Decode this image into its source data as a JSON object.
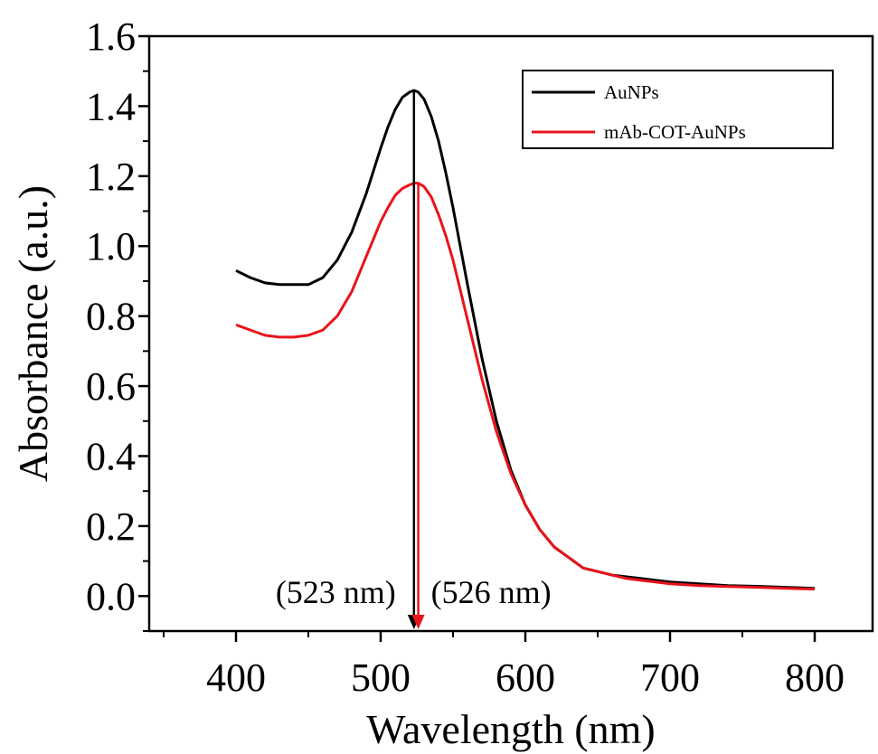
{
  "chart_data": {
    "type": "line",
    "xlabel": "Wavelength (nm)",
    "ylabel": "Absorbance (a.u.)",
    "xlim": [
      340,
      840
    ],
    "ylim": [
      -0.1,
      1.6
    ],
    "x_ticks": [
      400,
      500,
      600,
      700,
      800
    ],
    "y_ticks": [
      0.0,
      0.2,
      0.4,
      0.6,
      0.8,
      1.0,
      1.2,
      1.4,
      1.6
    ],
    "x_tick_labels": [
      "400",
      "500",
      "600",
      "700",
      "800"
    ],
    "y_tick_labels": [
      "0.0",
      "0.2",
      "0.4",
      "0.6",
      "0.8",
      "1.0",
      "1.2",
      "1.4",
      "1.6"
    ],
    "legend_position": "top-right",
    "grid": false,
    "series": [
      {
        "name": "AuNPs",
        "color": "#000000",
        "x": [
          400,
          410,
          420,
          430,
          440,
          450,
          460,
          470,
          480,
          490,
          500,
          505,
          510,
          515,
          520,
          523,
          526,
          530,
          535,
          540,
          545,
          550,
          560,
          570,
          580,
          590,
          600,
          610,
          620,
          630,
          640,
          650,
          660,
          670,
          680,
          690,
          700,
          720,
          740,
          760,
          780,
          800
        ],
        "y": [
          0.93,
          0.91,
          0.895,
          0.89,
          0.89,
          0.89,
          0.91,
          0.96,
          1.04,
          1.15,
          1.28,
          1.34,
          1.39,
          1.425,
          1.44,
          1.445,
          1.44,
          1.42,
          1.37,
          1.3,
          1.21,
          1.11,
          0.89,
          0.68,
          0.5,
          0.36,
          0.26,
          0.19,
          0.14,
          0.11,
          0.08,
          0.07,
          0.06,
          0.055,
          0.05,
          0.045,
          0.04,
          0.035,
          0.03,
          0.028,
          0.025,
          0.022
        ]
      },
      {
        "name": "mAb-COT-AuNPs",
        "color": "#e8141b",
        "x": [
          400,
          410,
          420,
          430,
          440,
          450,
          460,
          470,
          480,
          490,
          500,
          505,
          510,
          515,
          520,
          523,
          526,
          530,
          535,
          540,
          545,
          550,
          560,
          570,
          580,
          590,
          600,
          610,
          620,
          630,
          640,
          650,
          660,
          670,
          680,
          690,
          700,
          720,
          740,
          760,
          780,
          800
        ],
        "y": [
          0.775,
          0.76,
          0.745,
          0.74,
          0.74,
          0.745,
          0.76,
          0.8,
          0.87,
          0.97,
          1.07,
          1.11,
          1.145,
          1.165,
          1.175,
          1.18,
          1.18,
          1.17,
          1.14,
          1.09,
          1.03,
          0.96,
          0.79,
          0.62,
          0.47,
          0.35,
          0.26,
          0.19,
          0.14,
          0.11,
          0.08,
          0.07,
          0.06,
          0.05,
          0.045,
          0.04,
          0.035,
          0.03,
          0.027,
          0.025,
          0.022,
          0.02
        ]
      }
    ],
    "annotations": [
      {
        "text": "(523 nm)",
        "x": 523,
        "color": "#000000"
      },
      {
        "text": "(526 nm)",
        "x": 526,
        "color": "#e8141b"
      }
    ]
  }
}
